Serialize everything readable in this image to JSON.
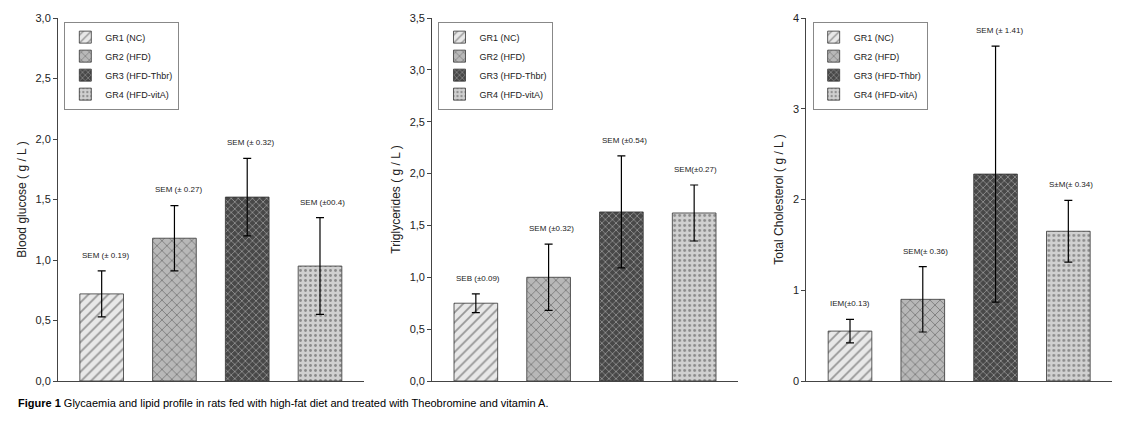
{
  "chart_data": [
    {
      "type": "bar",
      "ylabel": "Blood glucose ( g / L )",
      "categories": [
        null,
        null,
        null,
        null
      ],
      "series": [
        {
          "name": "GR1 (NC)",
          "color": "#e8e8e8",
          "values": [
            0.72,
            null,
            null,
            null
          ],
          "errors": [
            0.19,
            null,
            null,
            null
          ],
          "annotations": [
            "SEM (± 0.19)",
            null,
            null,
            null
          ]
        },
        {
          "name": "GR2 (HFD)",
          "color": "#b8b8b8",
          "values": [
            null,
            1.18,
            null,
            null
          ],
          "errors": [
            null,
            0.27,
            null,
            null
          ],
          "annotations": [
            null,
            "SEM (± 0.27)",
            null,
            null
          ]
        },
        {
          "name": "GR3 (HFD-Thbr)",
          "color": "#484848",
          "values": [
            null,
            null,
            1.52,
            null
          ],
          "errors": [
            null,
            null,
            0.32,
            null
          ],
          "annotations": [
            null,
            null,
            "SEM (± 0.32)",
            null
          ]
        },
        {
          "name": "GR4 (HFD-vitA)",
          "color": "#d0d0d0",
          "values": [
            null,
            null,
            null,
            0.95
          ],
          "errors": [
            null,
            null,
            null,
            0.4
          ],
          "annotations": [
            null,
            null,
            null,
            "SEM (±00.4)"
          ]
        }
      ],
      "ylim": [
        0,
        3.0
      ],
      "yticks": [
        {
          "value": 0.0,
          "label": "0,0"
        },
        {
          "value": 0.5,
          "label": "0,5"
        },
        {
          "value": 1.0,
          "label": "1,0"
        },
        {
          "value": 1.5,
          "label": "1,5"
        },
        {
          "value": 2.0,
          "label": "2,0"
        },
        {
          "value": 2.5,
          "label": "2,5"
        },
        {
          "value": 3.0,
          "label": "3,0"
        }
      ],
      "grid": false,
      "legend": "upper left",
      "tick_labels": "y"
    },
    {
      "type": "bar",
      "ylabel": "Triglycerides ( g / L )",
      "categories": [
        null,
        null,
        null,
        null
      ],
      "series": [
        {
          "name": "GR1 (NC)",
          "color": "#e8e8e8",
          "values": [
            0.75,
            null,
            null,
            null
          ],
          "errors": [
            0.09,
            null,
            null,
            null
          ],
          "annotations": [
            "SEB (±0.09)",
            null,
            null,
            null
          ]
        },
        {
          "name": "GR2 (HFD)",
          "color": "#b8b8b8",
          "values": [
            null,
            1.0,
            null,
            null
          ],
          "errors": [
            null,
            0.32,
            null,
            null
          ],
          "annotations": [
            null,
            "SEM (±0.32)",
            null,
            null
          ]
        },
        {
          "name": "GR3 (HFD-Thbr)",
          "color": "#484848",
          "values": [
            null,
            null,
            1.63,
            null
          ],
          "errors": [
            null,
            null,
            0.54,
            null
          ],
          "annotations": [
            null,
            null,
            "SEM (±0.54)",
            null
          ]
        },
        {
          "name": "GR4 (HFD-vitA)",
          "color": "#d0d0d0",
          "values": [
            null,
            null,
            null,
            1.62
          ],
          "errors": [
            null,
            null,
            null,
            0.27
          ],
          "annotations": [
            null,
            null,
            null,
            "SEM(±0.27)"
          ]
        }
      ],
      "ylim": [
        0,
        3.5
      ],
      "yticks": [
        {
          "value": 0.0,
          "label": "0,0"
        },
        {
          "value": 0.5,
          "label": "0,5"
        },
        {
          "value": 1.0,
          "label": "1,0"
        },
        {
          "value": 1.5,
          "label": "1,5"
        },
        {
          "value": 2.0,
          "label": "2,0"
        },
        {
          "value": 2.5,
          "label": "2,5"
        },
        {
          "value": 3.0,
          "label": "3,0"
        },
        {
          "value": 3.5,
          "label": "3,5"
        }
      ],
      "grid": false,
      "legend": "upper left",
      "tick_labels": "y"
    },
    {
      "type": "bar",
      "ylabel": "Total Cholesterol ( g / L )",
      "categories": [
        null,
        null,
        null,
        null
      ],
      "series": [
        {
          "name": "GR1 (NC)",
          "color": "#e8e8e8",
          "values": [
            0.55,
            null,
            null,
            null
          ],
          "errors": [
            0.13,
            null,
            null,
            null
          ],
          "annotations": [
            "IEM(±0.13)",
            null,
            null,
            null
          ]
        },
        {
          "name": "GR2 (HFD)",
          "color": "#b8b8b8",
          "values": [
            null,
            0.9,
            null,
            null
          ],
          "errors": [
            null,
            0.36,
            null,
            null
          ],
          "annotations": [
            null,
            "SEM(± 0.36)",
            null,
            null
          ]
        },
        {
          "name": "GR3 (HFD-Thbr)",
          "color": "#484848",
          "values": [
            null,
            null,
            2.28,
            null
          ],
          "errors": [
            null,
            null,
            1.41,
            null
          ],
          "annotations": [
            null,
            null,
            "SEM (± 1.41)",
            null
          ]
        },
        {
          "name": "GR4 (HFD-vitA)",
          "color": "#d0d0d0",
          "values": [
            null,
            null,
            null,
            1.65
          ],
          "errors": [
            null,
            null,
            null,
            0.34
          ],
          "annotations": [
            null,
            null,
            null,
            "S±M(± 0.34)"
          ]
        }
      ],
      "ylim": [
        0,
        4.0
      ],
      "yticks": [
        0,
        1,
        2,
        3,
        4
      ],
      "grid": false,
      "legend": "upper left",
      "tick_labels": "y"
    }
  ],
  "caption": {
    "bold": "Figure 1 ",
    "text": "Glycaemia and lipid profile in rats fed with high-fat diet and treated with Theobromine and vitamin A."
  }
}
